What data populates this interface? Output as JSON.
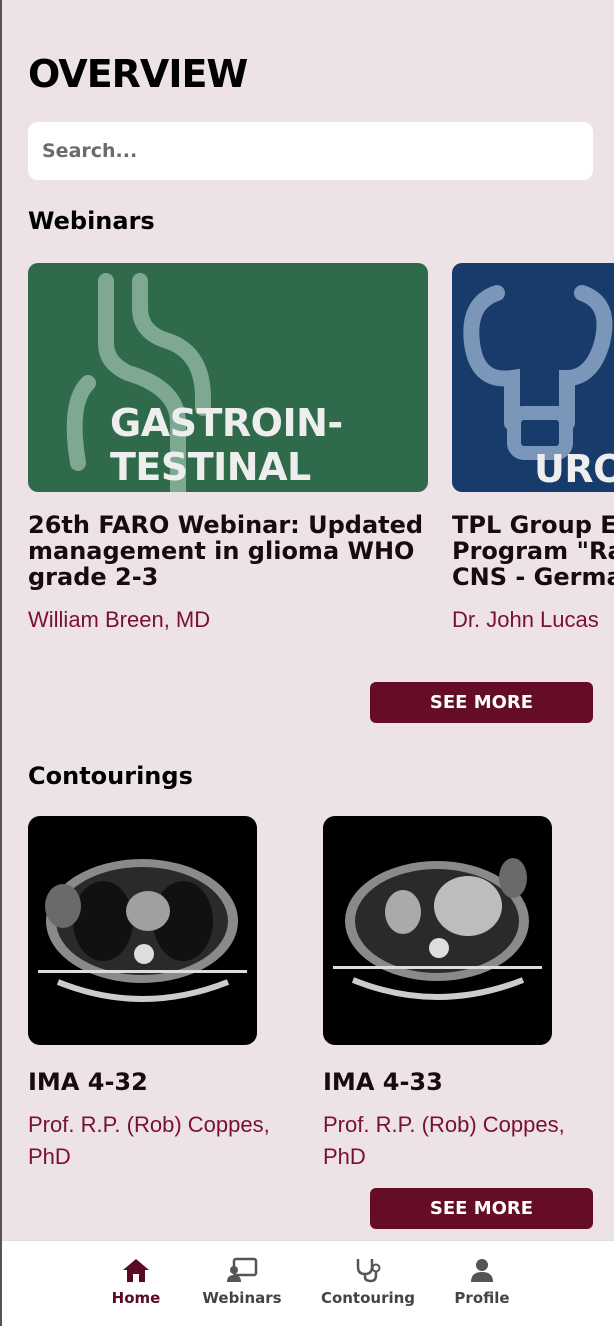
{
  "header": {
    "title": "OVERVIEW"
  },
  "search": {
    "placeholder": "Search..."
  },
  "webinars": {
    "section_title": "Webinars",
    "see_more_label": "SEE MORE",
    "items": [
      {
        "image_text_line1": "GASTROIN-",
        "image_text_line2": "TESTINAL",
        "image_color": "#2f6b4a",
        "title": "26th FARO Webinar: Updated management in glioma WHO grade 2-3",
        "author": "William Breen, MD"
      },
      {
        "image_text_line1": "URO",
        "image_color": "#173b6b",
        "title": "TPL Group Exchange Program \"Radiotherapy of CNS - Germany",
        "author": "Dr. John Lucas"
      }
    ]
  },
  "contourings": {
    "section_title": "Contourings",
    "see_more_label": "SEE MORE",
    "items": [
      {
        "title": "IMA 4-32",
        "author": "Prof. R.P. (Rob) Coppes, PhD"
      },
      {
        "title": "IMA 4-33",
        "author": "Prof. R.P. (Rob) Coppes, PhD"
      }
    ]
  },
  "tabbar": {
    "accent": "#5a0a22",
    "items": [
      {
        "label": "Home",
        "icon": "home-icon",
        "active": true
      },
      {
        "label": "Webinars",
        "icon": "presentation-icon",
        "active": false
      },
      {
        "label": "Contouring",
        "icon": "stethoscope-icon",
        "active": false
      },
      {
        "label": "Profile",
        "icon": "user-icon",
        "active": false
      }
    ]
  }
}
